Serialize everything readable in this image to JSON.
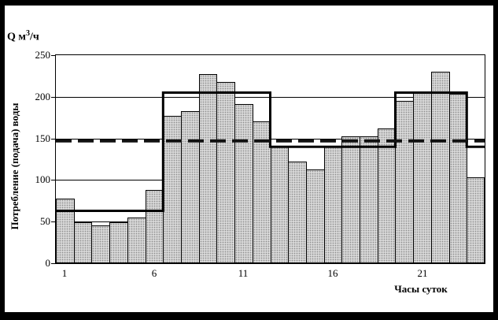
{
  "title": {
    "prefix": "Q м",
    "sup": "3",
    "suffix": "/ч"
  },
  "y_axis": {
    "label": "Потребление (подача) воды",
    "ticks": [
      250,
      200,
      150,
      100,
      50,
      0
    ]
  },
  "x_axis": {
    "label": "Часы суток",
    "ticks": [
      1,
      6,
      11,
      16,
      21
    ]
  },
  "chart_data": {
    "type": "bar",
    "title": "Q м3/ч",
    "xlabel": "Часы суток",
    "ylabel": "Потребление (подача) воды",
    "ylim": [
      0,
      250
    ],
    "grid_step": 50,
    "legend": false,
    "categories": [
      1,
      2,
      3,
      4,
      5,
      6,
      7,
      8,
      9,
      10,
      11,
      12,
      13,
      14,
      15,
      16,
      17,
      18,
      19,
      20,
      21,
      22,
      23,
      24
    ],
    "series": [
      {
        "name": "water-consumption-bars",
        "type": "bar",
        "values": [
          78,
          49,
          45,
          49,
          55,
          88,
          177,
          183,
          227,
          218,
          191,
          170,
          140,
          122,
          113,
          140,
          152,
          152,
          162,
          195,
          205,
          230,
          204,
          103
        ]
      },
      {
        "name": "supply-schedule-step-line",
        "type": "step",
        "values": [
          63,
          63,
          63,
          63,
          63,
          63,
          205,
          205,
          205,
          205,
          205,
          205,
          140,
          140,
          140,
          140,
          140,
          140,
          140,
          205,
          205,
          205,
          205,
          140
        ]
      },
      {
        "name": "average-flow-dashed-line",
        "type": "hline",
        "value": 147
      }
    ]
  }
}
